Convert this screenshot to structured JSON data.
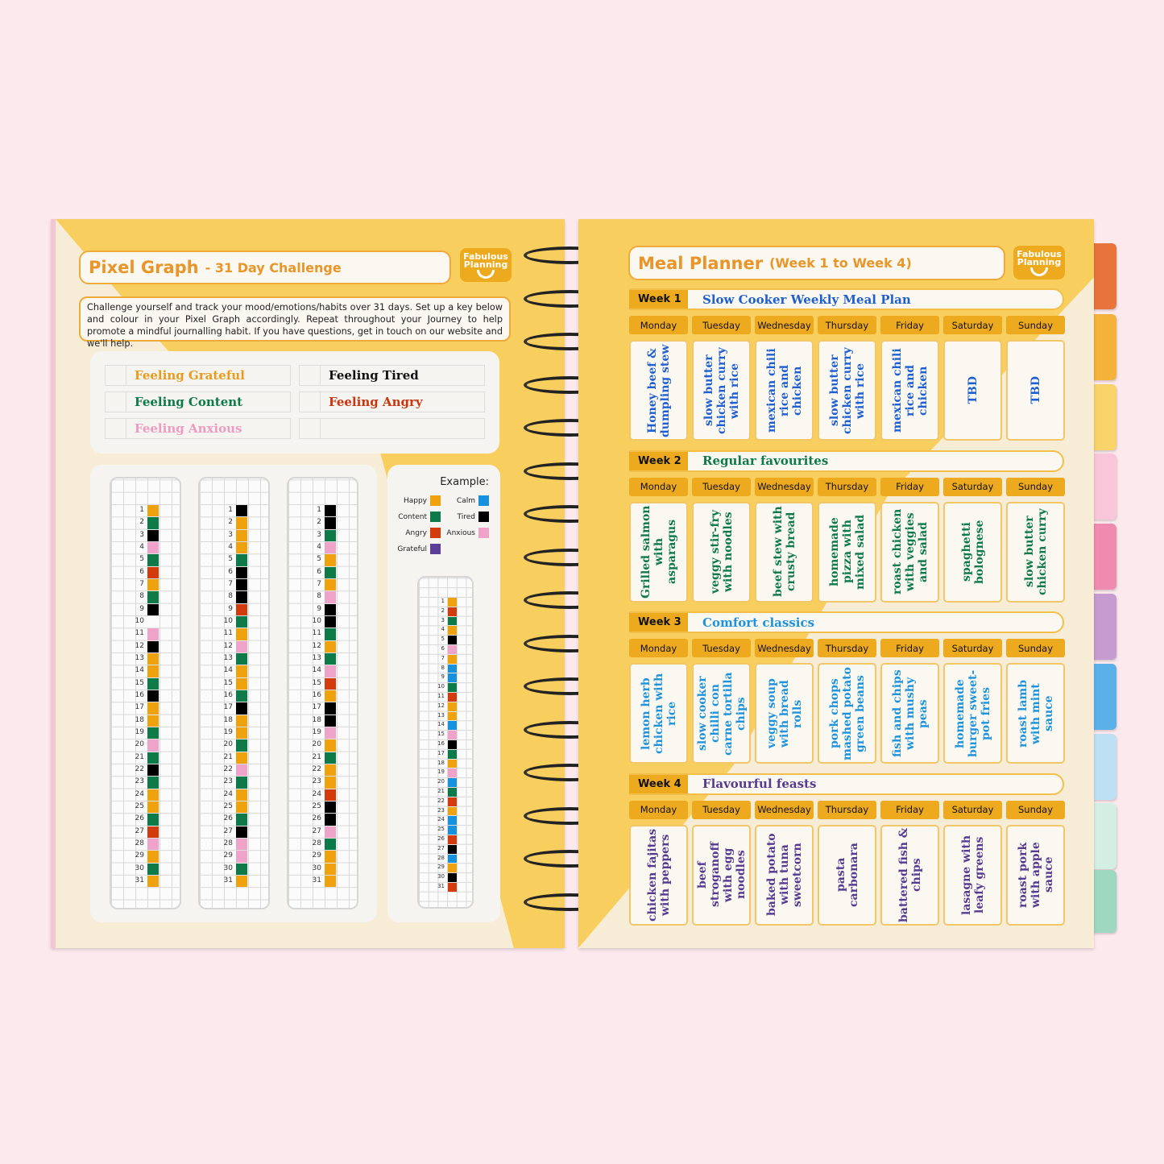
{
  "colors": {
    "happy": "#f0a20c",
    "content": "#0d7a4a",
    "tired": "#000000",
    "anxious": "#f0a3c8",
    "angry": "#d33a0c",
    "calm": "#1591dd",
    "grateful": "#5a3f99",
    "blank": "#fbfbfb"
  },
  "left": {
    "title": "Pixel Graph",
    "subtitle": "- 31 Day Challenge",
    "logo": "Fabulous Planning",
    "description": "Challenge yourself and track your mood/emotions/habits over 31 days. Set up a key below and colour in your Pixel Graph accordingly. Repeat throughout your Journey to help promote a mindful journalling habit. If you have questions, get in touch on our website and we'll help.",
    "key": [
      {
        "label": "Feeling Grateful",
        "color": "#e99b1e"
      },
      {
        "label": "Feeling Tired",
        "color": "#111111"
      },
      {
        "label": "Feeling Content",
        "color": "#0d7a4a"
      },
      {
        "label": "Feeling Angry",
        "color": "#c9360f"
      },
      {
        "label": "Feeling Anxious",
        "color": "#ec9cc0"
      },
      {
        "label": "",
        "color": "#111111"
      }
    ],
    "graphs": [
      "YGKPGRYGKWPKYYGKYYGPGKGYYGRPYGY",
      "KYYYGKKKRGYPGYYGKYYGYPGYYGKPPGY",
      "KKGPYGYPKKGYGPRYKKPYGYYRKKPGYYY"
    ],
    "example": {
      "heading": "Example:",
      "legend": [
        {
          "label": "Happy",
          "code": "Y"
        },
        {
          "label": "Calm",
          "code": "B"
        },
        {
          "label": "Content",
          "code": "G"
        },
        {
          "label": "Tired",
          "code": "K"
        },
        {
          "label": "Angry",
          "code": "R"
        },
        {
          "label": "Anxious",
          "code": "P"
        },
        {
          "label": "Grateful",
          "code": "V"
        }
      ],
      "graph": "YRGYKPYBBGRYYBPKGYPBGRYBBRKBYKR"
    },
    "code_map": {
      "Y": "happy",
      "G": "content",
      "K": "tired",
      "P": "anxious",
      "R": "angry",
      "B": "calm",
      "V": "grateful",
      "W": "blank"
    }
  },
  "right": {
    "title": "Meal Planner",
    "subtitle": "(Week 1 to Week 4)",
    "logo": "Fabulous Planning",
    "days": [
      "Monday",
      "Tuesday",
      "Wednesday",
      "Thursday",
      "Friday",
      "Saturday",
      "Sunday"
    ],
    "weeks": [
      {
        "label": "Week 1",
        "title": "Slow Cooker Weekly Meal Plan",
        "color": "#1f5fd0",
        "meals": [
          "Honey beef & dumpling stew",
          "slow butter chicken curry with rice",
          "mexican chili rice and chicken",
          "slow butter chicken curry with rice",
          "mexican chili rice and chicken",
          "TBD",
          "TBD"
        ]
      },
      {
        "label": "Week 2",
        "title": "Regular favourites",
        "color": "#0e7a4a",
        "meals": [
          "Grilled salmon with asparagus",
          "veggy stir-fry with noodles",
          "beef stew with crusty bread",
          "homemade pizza with mixed salad",
          "roast chicken with veggies and salad",
          "spaghetti bolognese",
          "slow butter chicken curry"
        ]
      },
      {
        "label": "Week 3",
        "title": "Comfort classics",
        "color": "#1e93dc",
        "meals": [
          "lemon herb chicken with rice",
          "slow cooker chilli con carne tortilla chips",
          "veggy soup with bread rolls",
          "pork chops mashed potato green beans",
          "fish and chips with mushy peas",
          "homemade burger sweet-pot fries",
          "roast lamb with mint sauce"
        ]
      },
      {
        "label": "Week 4",
        "title": "Flavourful feasts",
        "color": "#553a8f",
        "meals": [
          "chicken fajitas with peppers",
          "beef stroganoff with egg noodles",
          "baked potato with tuna sweetcorn",
          "pasta carbonara",
          "battered fish & chips",
          "lasagne with leafy greens",
          "roast pork with apple sauce"
        ]
      }
    ]
  },
  "tabs": [
    "#e8743b",
    "#f5b23a",
    "#f8d36a",
    "#f8c6d8",
    "#f08bb0",
    "#c59bd0",
    "#5bb0e8",
    "#bde0f5",
    "#d3efe3",
    "#9ed8c0"
  ]
}
